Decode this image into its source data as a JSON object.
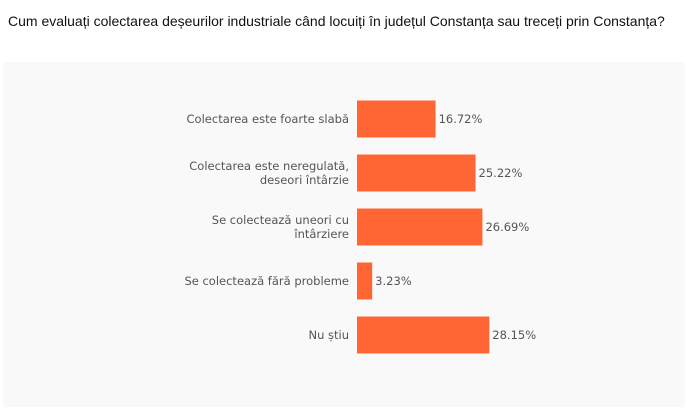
{
  "question": "Cum evaluați colectarea deșeurilor industriale când locuiți în județul Constanța sau treceți prin Constanța?",
  "chart_data": {
    "type": "bar",
    "orientation": "horizontal",
    "categories": [
      [
        "Colectarea este foarte slabă"
      ],
      [
        "Colectarea este neregulată,",
        "deseori întârzie"
      ],
      [
        "Se colectează uneori cu",
        "întârziere"
      ],
      [
        "Se colectează fără probleme"
      ],
      [
        "Nu știu"
      ]
    ],
    "values": [
      16.72,
      25.22,
      26.69,
      3.23,
      28.15
    ],
    "value_labels": [
      "16.72%",
      "25.22%",
      "26.69%",
      "3.23%",
      "28.15%"
    ],
    "bar_color": "#ff6633",
    "xlim": [
      0,
      100
    ],
    "grid": false,
    "legend": "none"
  }
}
